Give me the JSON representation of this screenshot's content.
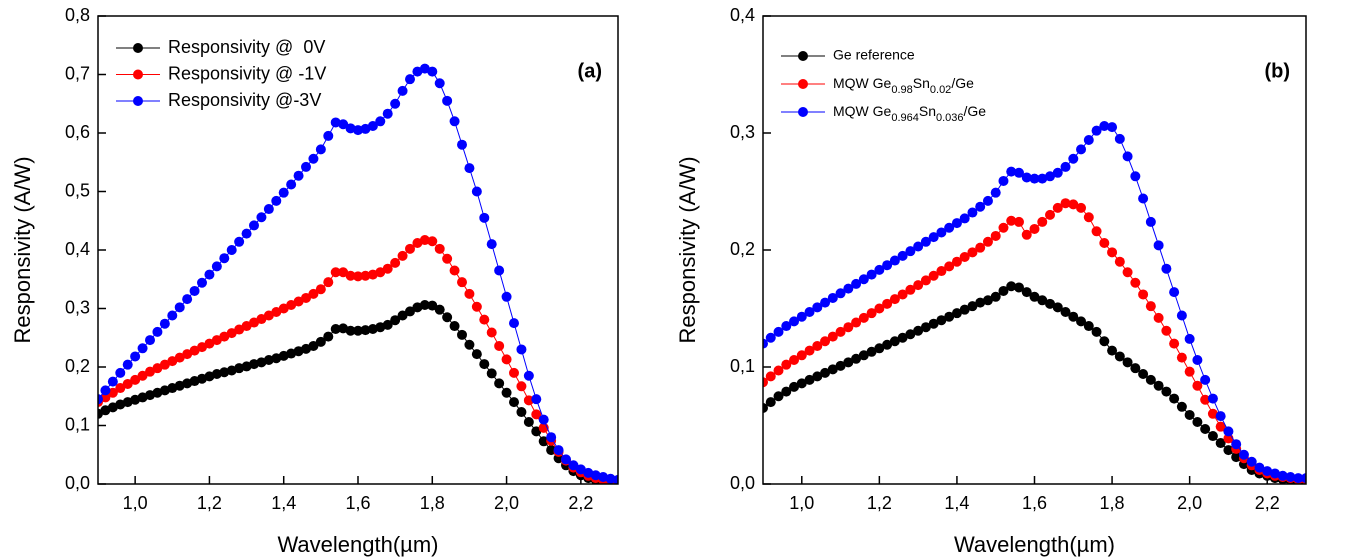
{
  "chart_data": [
    {
      "type": "line",
      "annotation": "(a)",
      "x_label": "Wavelength(µm)",
      "y_label": "Responsivity (A/W)",
      "x": [
        0.9,
        0.92,
        0.94,
        0.96,
        0.98,
        1.0,
        1.02,
        1.04,
        1.06,
        1.08,
        1.1,
        1.12,
        1.14,
        1.16,
        1.18,
        1.2,
        1.22,
        1.24,
        1.26,
        1.28,
        1.3,
        1.32,
        1.34,
        1.36,
        1.38,
        1.4,
        1.42,
        1.44,
        1.46,
        1.48,
        1.5,
        1.52,
        1.54,
        1.56,
        1.58,
        1.6,
        1.62,
        1.64,
        1.66,
        1.68,
        1.7,
        1.72,
        1.74,
        1.76,
        1.78,
        1.8,
        1.82,
        1.84,
        1.86,
        1.88,
        1.9,
        1.92,
        1.94,
        1.96,
        1.98,
        2.0,
        2.02,
        2.04,
        2.06,
        2.08,
        2.1,
        2.12,
        2.14,
        2.16,
        2.18,
        2.2,
        2.22,
        2.24,
        2.26,
        2.28,
        2.3
      ],
      "xlim": [
        0.9,
        2.3
      ],
      "xticks": [
        {
          "value": 1.0,
          "label": "1,0"
        },
        {
          "value": 1.2,
          "label": "1,2"
        },
        {
          "value": 1.4,
          "label": "1,4"
        },
        {
          "value": 1.6,
          "label": "1,6"
        },
        {
          "value": 1.8,
          "label": "1,8"
        },
        {
          "value": 2.0,
          "label": "2,0"
        },
        {
          "value": 2.2,
          "label": "2,2"
        }
      ],
      "ylim": [
        0,
        0.8
      ],
      "yticks": [
        {
          "value": 0,
          "label": "0,0"
        },
        {
          "value": 0.1,
          "label": "0,1"
        },
        {
          "value": 0.2,
          "label": "0,2"
        },
        {
          "value": 0.3,
          "label": "0,3"
        },
        {
          "value": 0.4,
          "label": "0,4"
        },
        {
          "value": 0.5,
          "label": "0,5"
        },
        {
          "value": 0.6,
          "label": "0,6"
        },
        {
          "value": 0.7,
          "label": "0,7"
        },
        {
          "value": 0.8,
          "label": "0,8"
        }
      ],
      "legend": "top-left",
      "series": [
        {
          "name": "Responsivity @  0V",
          "color": "#000000",
          "values": [
            0.12,
            0.126,
            0.131,
            0.136,
            0.14,
            0.144,
            0.148,
            0.152,
            0.156,
            0.16,
            0.164,
            0.168,
            0.172,
            0.176,
            0.18,
            0.184,
            0.188,
            0.191,
            0.194,
            0.198,
            0.201,
            0.205,
            0.208,
            0.212,
            0.215,
            0.219,
            0.223,
            0.227,
            0.231,
            0.236,
            0.243,
            0.252,
            0.265,
            0.266,
            0.262,
            0.262,
            0.263,
            0.265,
            0.268,
            0.272,
            0.28,
            0.288,
            0.295,
            0.302,
            0.306,
            0.305,
            0.298,
            0.285,
            0.27,
            0.255,
            0.238,
            0.222,
            0.205,
            0.189,
            0.172,
            0.156,
            0.14,
            0.123,
            0.106,
            0.09,
            0.073,
            0.058,
            0.044,
            0.032,
            0.022,
            0.015,
            0.01,
            0.007,
            0.005,
            0.004,
            0.003
          ]
        },
        {
          "name": "Responsivity @ -1V",
          "color": "#ff0000",
          "values": [
            0.14,
            0.148,
            0.156,
            0.164,
            0.171,
            0.178,
            0.185,
            0.192,
            0.198,
            0.204,
            0.21,
            0.216,
            0.222,
            0.228,
            0.234,
            0.24,
            0.246,
            0.252,
            0.258,
            0.264,
            0.27,
            0.276,
            0.282,
            0.288,
            0.294,
            0.3,
            0.306,
            0.312,
            0.318,
            0.325,
            0.333,
            0.345,
            0.362,
            0.362,
            0.356,
            0.355,
            0.356,
            0.358,
            0.362,
            0.368,
            0.378,
            0.39,
            0.402,
            0.412,
            0.417,
            0.415,
            0.402,
            0.385,
            0.365,
            0.345,
            0.325,
            0.303,
            0.281,
            0.259,
            0.236,
            0.213,
            0.19,
            0.167,
            0.143,
            0.119,
            0.096,
            0.074,
            0.055,
            0.04,
            0.028,
            0.02,
            0.014,
            0.01,
            0.007,
            0.005,
            0.004
          ]
        },
        {
          "name": "Responsivity @-3V",
          "color": "#0000ff",
          "values": [
            0.145,
            0.16,
            0.175,
            0.19,
            0.204,
            0.218,
            0.232,
            0.246,
            0.26,
            0.274,
            0.288,
            0.302,
            0.316,
            0.33,
            0.344,
            0.358,
            0.372,
            0.386,
            0.4,
            0.414,
            0.428,
            0.442,
            0.456,
            0.47,
            0.484,
            0.498,
            0.512,
            0.527,
            0.542,
            0.556,
            0.572,
            0.595,
            0.618,
            0.615,
            0.608,
            0.605,
            0.607,
            0.612,
            0.62,
            0.633,
            0.65,
            0.672,
            0.692,
            0.705,
            0.71,
            0.705,
            0.685,
            0.655,
            0.62,
            0.58,
            0.54,
            0.5,
            0.455,
            0.41,
            0.365,
            0.32,
            0.275,
            0.23,
            0.185,
            0.145,
            0.11,
            0.08,
            0.058,
            0.042,
            0.032,
            0.025,
            0.019,
            0.015,
            0.012,
            0.009,
            0.007
          ]
        }
      ]
    },
    {
      "type": "line",
      "annotation": "(b)",
      "x_label": "Wavelength(µm)",
      "y_label": "Responsivity (A/W)",
      "x": [
        0.9,
        0.92,
        0.94,
        0.96,
        0.98,
        1.0,
        1.02,
        1.04,
        1.06,
        1.08,
        1.1,
        1.12,
        1.14,
        1.16,
        1.18,
        1.2,
        1.22,
        1.24,
        1.26,
        1.28,
        1.3,
        1.32,
        1.34,
        1.36,
        1.38,
        1.4,
        1.42,
        1.44,
        1.46,
        1.48,
        1.5,
        1.52,
        1.54,
        1.56,
        1.58,
        1.6,
        1.62,
        1.64,
        1.66,
        1.68,
        1.7,
        1.72,
        1.74,
        1.76,
        1.78,
        1.8,
        1.82,
        1.84,
        1.86,
        1.88,
        1.9,
        1.92,
        1.94,
        1.96,
        1.98,
        2.0,
        2.02,
        2.04,
        2.06,
        2.08,
        2.1,
        2.12,
        2.14,
        2.16,
        2.18,
        2.2,
        2.22,
        2.24,
        2.26,
        2.28,
        2.3
      ],
      "xlim": [
        0.9,
        2.3
      ],
      "xticks": [
        {
          "value": 1.0,
          "label": "1,0"
        },
        {
          "value": 1.2,
          "label": "1,2"
        },
        {
          "value": 1.4,
          "label": "1,4"
        },
        {
          "value": 1.6,
          "label": "1,6"
        },
        {
          "value": 1.8,
          "label": "1,8"
        },
        {
          "value": 2.0,
          "label": "2,0"
        },
        {
          "value": 2.2,
          "label": "2,2"
        }
      ],
      "ylim": [
        0,
        0.4
      ],
      "yticks": [
        {
          "value": 0,
          "label": "0,0"
        },
        {
          "value": 0.1,
          "label": "0,1"
        },
        {
          "value": 0.2,
          "label": "0,2"
        },
        {
          "value": 0.3,
          "label": "0,3"
        },
        {
          "value": 0.4,
          "label": "0,4"
        }
      ],
      "legend": "top-left",
      "series": [
        {
          "name": "Ge reference",
          "color": "#000000",
          "values": [
            0.065,
            0.07,
            0.075,
            0.079,
            0.083,
            0.086,
            0.089,
            0.092,
            0.095,
            0.098,
            0.101,
            0.104,
            0.107,
            0.11,
            0.113,
            0.116,
            0.119,
            0.122,
            0.125,
            0.128,
            0.131,
            0.134,
            0.137,
            0.14,
            0.143,
            0.146,
            0.149,
            0.152,
            0.155,
            0.157,
            0.16,
            0.165,
            0.169,
            0.168,
            0.164,
            0.16,
            0.157,
            0.154,
            0.151,
            0.147,
            0.143,
            0.139,
            0.135,
            0.13,
            0.122,
            0.114,
            0.109,
            0.104,
            0.099,
            0.094,
            0.089,
            0.084,
            0.079,
            0.073,
            0.066,
            0.059,
            0.053,
            0.047,
            0.041,
            0.035,
            0.029,
            0.023,
            0.017,
            0.012,
            0.009,
            0.007,
            0.005,
            0.004,
            0.003,
            0.003,
            0.002
          ]
        },
        {
          "name": "MQW Ge0.98Sn0.02/Ge",
          "color": "#ff0000",
          "values": [
            0.087,
            0.092,
            0.097,
            0.102,
            0.106,
            0.11,
            0.114,
            0.118,
            0.122,
            0.126,
            0.13,
            0.134,
            0.138,
            0.142,
            0.146,
            0.15,
            0.154,
            0.158,
            0.162,
            0.166,
            0.17,
            0.174,
            0.178,
            0.182,
            0.186,
            0.19,
            0.194,
            0.198,
            0.202,
            0.207,
            0.212,
            0.219,
            0.225,
            0.224,
            0.213,
            0.218,
            0.224,
            0.23,
            0.236,
            0.24,
            0.239,
            0.236,
            0.228,
            0.216,
            0.206,
            0.198,
            0.19,
            0.181,
            0.172,
            0.162,
            0.152,
            0.142,
            0.131,
            0.12,
            0.108,
            0.096,
            0.084,
            0.072,
            0.06,
            0.049,
            0.039,
            0.03,
            0.022,
            0.016,
            0.012,
            0.009,
            0.007,
            0.006,
            0.005,
            0.004,
            0.004
          ]
        },
        {
          "name": "MQW Ge0.964Sn0.036/Ge",
          "color": "#0000ff",
          "values": [
            0.12,
            0.125,
            0.13,
            0.135,
            0.139,
            0.143,
            0.147,
            0.151,
            0.155,
            0.159,
            0.163,
            0.167,
            0.171,
            0.175,
            0.179,
            0.183,
            0.187,
            0.191,
            0.195,
            0.199,
            0.203,
            0.207,
            0.211,
            0.215,
            0.219,
            0.223,
            0.227,
            0.232,
            0.237,
            0.242,
            0.249,
            0.259,
            0.267,
            0.266,
            0.262,
            0.261,
            0.261,
            0.263,
            0.266,
            0.271,
            0.278,
            0.286,
            0.294,
            0.302,
            0.306,
            0.305,
            0.295,
            0.28,
            0.263,
            0.244,
            0.224,
            0.204,
            0.184,
            0.164,
            0.144,
            0.124,
            0.106,
            0.089,
            0.073,
            0.058,
            0.045,
            0.034,
            0.025,
            0.019,
            0.014,
            0.011,
            0.009,
            0.007,
            0.006,
            0.005,
            0.005
          ]
        }
      ]
    }
  ]
}
